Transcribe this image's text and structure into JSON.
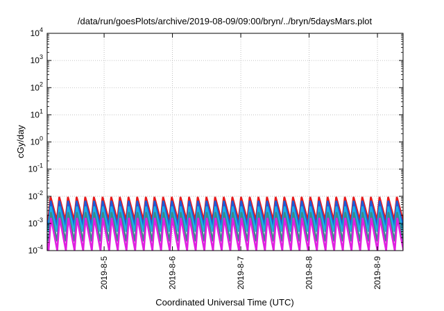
{
  "chart_data": {
    "type": "line",
    "title": "/data/run/goesPlots/archive/2019-08-09/09:00/bryn/../bryn/5daysMars.plot",
    "xlabel": "Coordinated Universal Time (UTC)",
    "ylabel": "cGy/day",
    "yscale": "log",
    "ylim": [
      0.0001,
      10000
    ],
    "ytick_labels": [
      {
        "mantissa": "10",
        "exp": "-4"
      },
      {
        "mantissa": "10",
        "exp": "-3"
      },
      {
        "mantissa": "10",
        "exp": "-2"
      },
      {
        "mantissa": "10",
        "exp": "-1"
      },
      {
        "mantissa": "10",
        "exp": "0"
      },
      {
        "mantissa": "10",
        "exp": "1"
      },
      {
        "mantissa": "10",
        "exp": "2"
      },
      {
        "mantissa": "10",
        "exp": "3"
      },
      {
        "mantissa": "10",
        "exp": "4"
      }
    ],
    "xlim": [
      "2019-08-04 04:00",
      "2019-08-09 09:00"
    ],
    "xticks": [
      "2019-8-5",
      "2019-8-6",
      "2019-8-7",
      "2019-8-8",
      "2019-8-9"
    ],
    "grid": true,
    "legend": "none",
    "pattern": {
      "description": "repeating sawtooth, rising sharply and decaying about every 3 hours",
      "period_hours": 3.04
    },
    "series": [
      {
        "color": "#e41a1c",
        "peak": 0.0095,
        "trough": 0.0013
      },
      {
        "color": "#1f5bd6",
        "peak": 0.0068,
        "trough": 0.0008
      },
      {
        "color": "#1ab0e8",
        "peak": 0.0042,
        "trough": 0.0005
      },
      {
        "color": "#3a8a8a",
        "peak": 0.0026,
        "trough": 0.00022
      },
      {
        "color": "#e020e0",
        "peak": 0.0016,
        "trough": 0.0001
      }
    ]
  }
}
